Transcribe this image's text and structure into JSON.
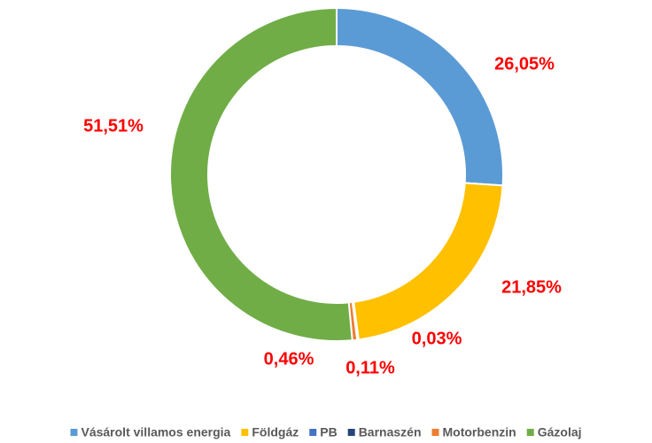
{
  "chart_data": {
    "type": "donut",
    "categories": [
      "Vásárolt villamos energia",
      "Földgáz",
      "PB",
      "Barnaszén",
      "Motorbenzin",
      "Gázolaj"
    ],
    "values": [
      26.05,
      21.85,
      0.03,
      0.11,
      0.46,
      51.51
    ],
    "value_labels": [
      "26,05%",
      "21,85%",
      "0,03%",
      "0,11%",
      "0,46%",
      "51,51%"
    ],
    "colors": [
      "#5b9bd5",
      "#ffc000",
      "#4472c4",
      "#264478",
      "#ed7d31",
      "#70ad47"
    ],
    "legend": "bottom"
  }
}
